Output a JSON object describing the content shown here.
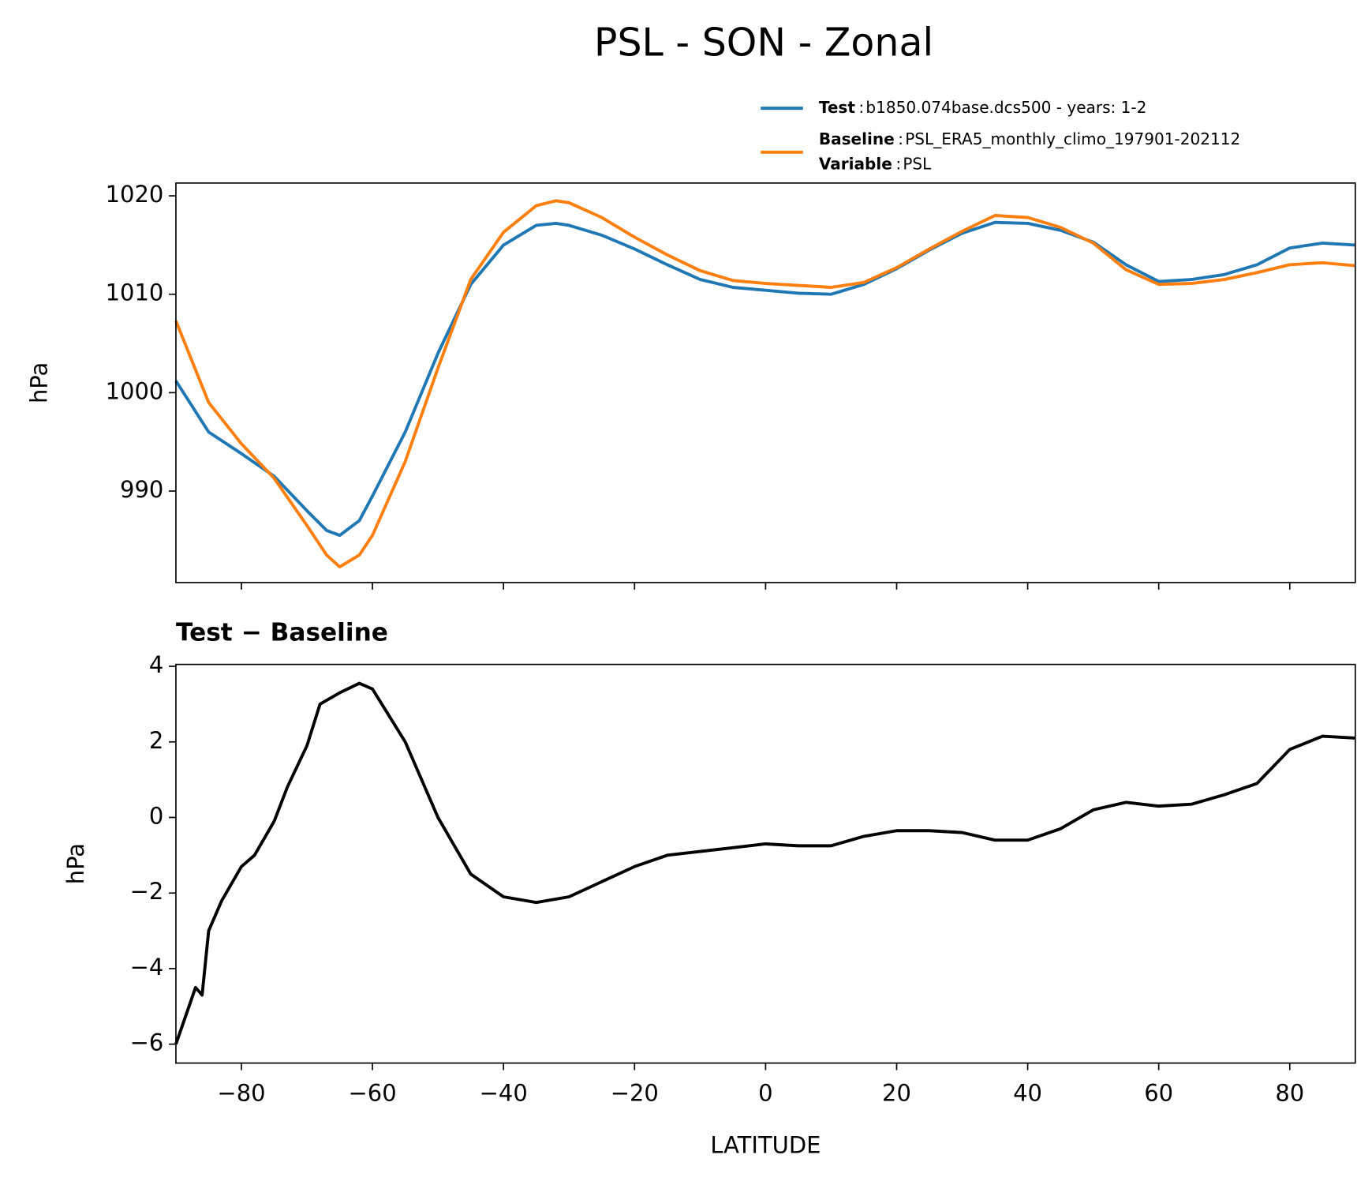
{
  "title": "PSL - SON - Zonal",
  "chart_data": [
    {
      "type": "line",
      "ylabel": "hPa",
      "x": [
        -90,
        -85,
        -80,
        -75,
        -70,
        -67,
        -65,
        -62,
        -60,
        -55,
        -50,
        -45,
        -40,
        -35,
        -32,
        -30,
        -25,
        -20,
        -15,
        -10,
        -5,
        0,
        5,
        10,
        15,
        20,
        25,
        30,
        35,
        40,
        45,
        50,
        55,
        60,
        65,
        70,
        75,
        80,
        85,
        90
      ],
      "series": [
        {
          "name": "Test",
          "label": "b1850.074base.dcs500 - years: 1-2",
          "color": "#1f77b4",
          "values": [
            1001.2,
            996,
            993.8,
            991.5,
            988,
            986,
            985.5,
            987,
            989.5,
            996,
            1004,
            1011,
            1015,
            1017,
            1017.2,
            1017,
            1016,
            1014.6,
            1013,
            1011.5,
            1010.7,
            1010.4,
            1010.1,
            1010,
            1011,
            1012.6,
            1014.5,
            1016.2,
            1017.3,
            1017.2,
            1016.5,
            1015.3,
            1013,
            1011.3,
            1011.5,
            1012,
            1013,
            1014.7,
            1015.2,
            1015
          ]
        },
        {
          "name": "Baseline",
          "label": "PSL_ERA5_monthly_climo_197901-202112",
          "color": "#ff7f0e",
          "values": [
            1007.3,
            999,
            994.8,
            991.3,
            986.5,
            983.5,
            982.3,
            983.5,
            985.5,
            993,
            1002.5,
            1011.5,
            1016.3,
            1019,
            1019.5,
            1019.3,
            1017.8,
            1015.8,
            1014,
            1012.4,
            1011.4,
            1011.1,
            1010.9,
            1010.7,
            1011.2,
            1012.7,
            1014.6,
            1016.4,
            1018,
            1017.8,
            1016.8,
            1015.2,
            1012.5,
            1011,
            1011.1,
            1011.5,
            1012.2,
            1013,
            1013.2,
            1012.9
          ]
        }
      ],
      "legend_extra": {
        "name": "Variable",
        "label": "PSL"
      },
      "separator": ":",
      "xlim": [
        -90,
        90
      ],
      "xticks": [
        -80,
        -60,
        -40,
        -20,
        0,
        20,
        40,
        60,
        80
      ],
      "show_xtick_labels": false,
      "ylim": [
        980.7,
        1021.3
      ],
      "yticks": [
        990,
        1000,
        1010,
        1020
      ]
    },
    {
      "type": "line",
      "title": "Test − Baseline",
      "ylabel": "hPa",
      "xlabel": "LATITUDE",
      "x": [
        -90,
        -88,
        -87,
        -86,
        -85,
        -83,
        -80,
        -78,
        -75,
        -73,
        -70,
        -68,
        -65,
        -62,
        -60,
        -55,
        -50,
        -45,
        -40,
        -35,
        -30,
        -25,
        -20,
        -15,
        -10,
        -5,
        0,
        5,
        10,
        15,
        20,
        25,
        30,
        35,
        40,
        45,
        50,
        55,
        60,
        65,
        70,
        75,
        80,
        85,
        90
      ],
      "series": [
        {
          "color": "#000000",
          "values": [
            -6,
            -5,
            -4.5,
            -4.7,
            -3,
            -2.2,
            -1.3,
            -1,
            -0.1,
            0.8,
            1.9,
            3,
            3.3,
            3.55,
            3.4,
            2,
            0,
            -1.5,
            -2.1,
            -2.25,
            -2.1,
            -1.7,
            -1.3,
            -1,
            -0.9,
            -0.8,
            -0.7,
            -0.75,
            -0.75,
            -0.5,
            -0.35,
            -0.35,
            -0.4,
            -0.6,
            -0.6,
            -0.3,
            0.2,
            0.4,
            0.3,
            0.35,
            0.6,
            0.9,
            1.8,
            2.15,
            2.1
          ]
        }
      ],
      "xlim": [
        -90,
        90
      ],
      "xticks": [
        -80,
        -60,
        -40,
        -20,
        0,
        20,
        40,
        60,
        80
      ],
      "ylim": [
        -6.5,
        4.05
      ],
      "yticks": [
        {
          "value": -6,
          "label": "−6"
        },
        {
          "value": -4,
          "label": "−4"
        },
        {
          "value": -2,
          "label": "−2"
        },
        0,
        2,
        4
      ]
    }
  ]
}
